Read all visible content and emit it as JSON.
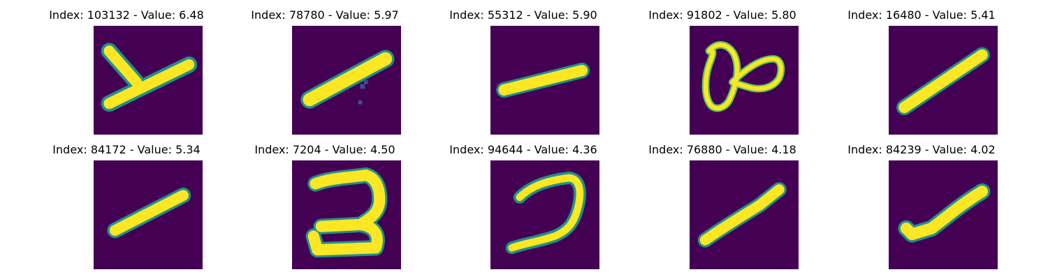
{
  "figure": {
    "colormap": "viridis",
    "background_color": "#440154",
    "foreground_color": "#fde725",
    "panels": [
      {
        "title": "Index: 103132 - Value: 6.48",
        "index": 103132,
        "value": 6.48
      },
      {
        "title": "Index: 78780 - Value: 5.97",
        "index": 78780,
        "value": 5.97
      },
      {
        "title": "Index: 55312 - Value: 5.90",
        "index": 55312,
        "value": 5.9
      },
      {
        "title": "Index: 91802 - Value: 5.80",
        "index": 91802,
        "value": 5.8
      },
      {
        "title": "Index: 16480 - Value: 5.41",
        "index": 16480,
        "value": 5.41
      },
      {
        "title": "Index: 84172 - Value: 5.34",
        "index": 84172,
        "value": 5.34
      },
      {
        "title": "Index: 7204 - Value: 4.50",
        "index": 7204,
        "value": 4.5
      },
      {
        "title": "Index: 94644 - Value: 4.36",
        "index": 94644,
        "value": 4.36
      },
      {
        "title": "Index: 76880 - Value: 4.18",
        "index": 76880,
        "value": 4.18
      },
      {
        "title": "Index: 84239 - Value: 4.02",
        "index": 84239,
        "value": 4.02
      }
    ]
  }
}
